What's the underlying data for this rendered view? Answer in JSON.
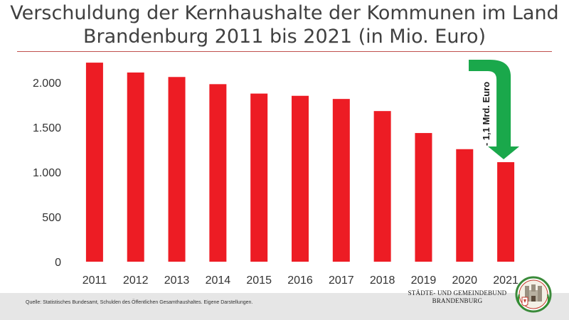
{
  "header": {
    "title_line1": "Verschuldung der Kernhaushalte der Kommunen im Land",
    "title_line2": "Brandenburg 2011 bis 2021 (in Mio. Euro)"
  },
  "chart_data": {
    "type": "bar",
    "categories": [
      "2011",
      "2012",
      "2013",
      "2014",
      "2015",
      "2016",
      "2017",
      "2018",
      "2019",
      "2020",
      "2021"
    ],
    "values": [
      2220,
      2110,
      2060,
      1980,
      1875,
      1850,
      1815,
      1680,
      1435,
      1255,
      1110
    ],
    "yticks": [
      0,
      500,
      1000,
      1500,
      2000
    ],
    "ytick_labels": [
      "0",
      "500",
      "1.000",
      "1.500",
      "2.000"
    ],
    "ylim": [
      0,
      2300
    ],
    "bar_color": "#ed1c24",
    "grid": false,
    "annotation": {
      "text": "- 1,1 Mrd. Euro",
      "color": "#1aa84b"
    }
  },
  "footer": {
    "source": "Quelle: Statistisches Bundesamt, Schulden des Öffentlichen Gesamthaushaltes. Eigene Darstellungen.",
    "org_line1": "STÄDTE- UND GEMEINDEBUND",
    "org_line2": "BRANDENBURG",
    "logo_icon": "coat-of-arms-icon"
  }
}
